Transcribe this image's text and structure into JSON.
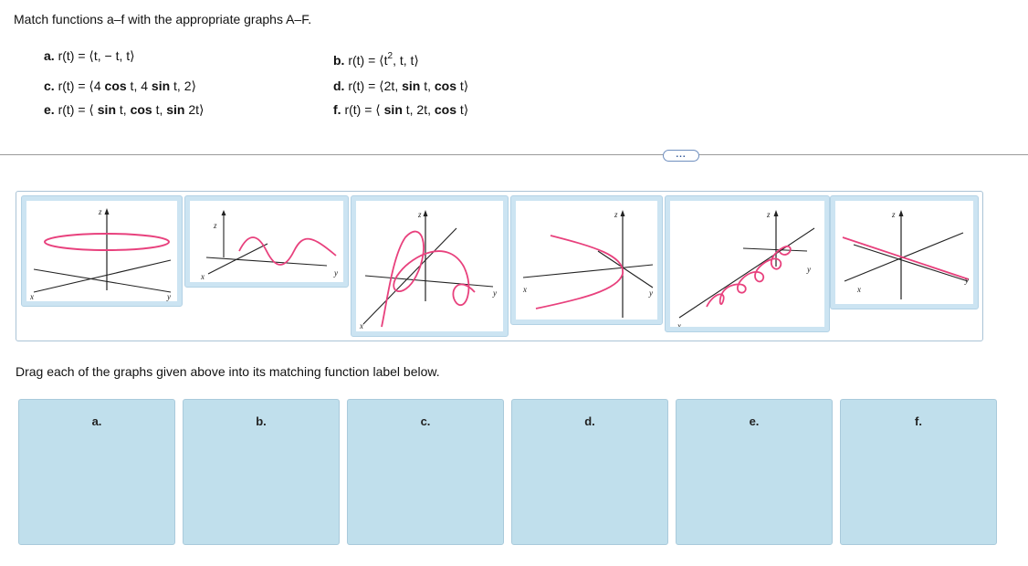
{
  "question": {
    "prompt": "Match functions a–f with the appropriate graphs A–F.",
    "functions": {
      "a": {
        "label": "a.",
        "text": "r(t) = ⟨t, − t, t⟩"
      },
      "b": {
        "label": "b.",
        "pre": "r(t) = ⟨t",
        "sup": "2",
        "post": ", t, t⟩"
      },
      "c": {
        "label": "c.",
        "pre": "r(t) = ⟨4 ",
        "b1": "cos",
        "mid": " t, 4 ",
        "b2": "sin",
        "post": " t, 2⟩"
      },
      "d": {
        "label": "d.",
        "pre": "r(t) = ⟨2t, ",
        "b1": "sin",
        "mid": " t, ",
        "b2": "cos",
        "post": " t⟩"
      },
      "e": {
        "label": "e.",
        "pre": "r(t) = ⟨ ",
        "b1": "sin",
        "mid1": " t, ",
        "b2": "cos",
        "mid2": " t, ",
        "b3": "sin",
        "post": " 2t⟩"
      },
      "f": {
        "label": "f.",
        "pre": "r(t) = ⟨ ",
        "b1": "sin",
        "mid": " t, 2t, ",
        "b2": "cos",
        "post": " t⟩"
      }
    }
  },
  "more_button": "...",
  "axis_labels": {
    "x": "x",
    "y": "y",
    "z": "z"
  },
  "instruction": "Drag each of the graphs given above into its matching function label below.",
  "drop_targets": [
    "a.",
    "b.",
    "c.",
    "d.",
    "e.",
    "f."
  ],
  "colors": {
    "curve": "#e8417d",
    "axis": "#222222",
    "card": "#cce4f2",
    "drop": "#c0dfec",
    "tray_border": "#aac3d6"
  }
}
